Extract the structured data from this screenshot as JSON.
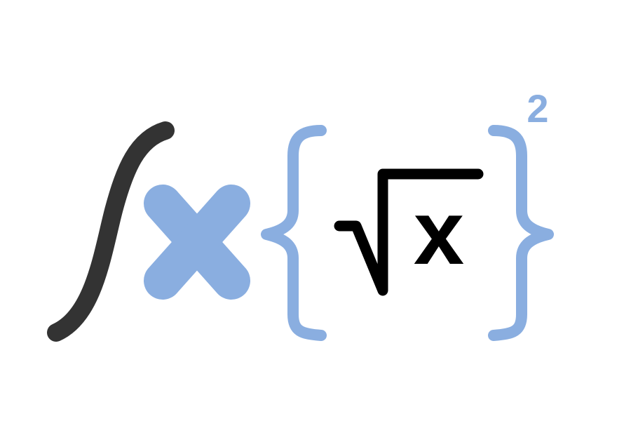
{
  "formula": {
    "inner_variable": "x",
    "exponent": "2"
  },
  "icons": {
    "integral": "integral-sign-icon",
    "multiply": "multiplication-cross-icon",
    "left_brace": "left-curly-brace-icon",
    "radical": "square-root-radical-icon",
    "right_brace": "right-curly-brace-icon"
  },
  "colors": {
    "integral": "#333333",
    "accent": "#8aaee0",
    "ink": "#000000",
    "background": "#ffffff"
  }
}
